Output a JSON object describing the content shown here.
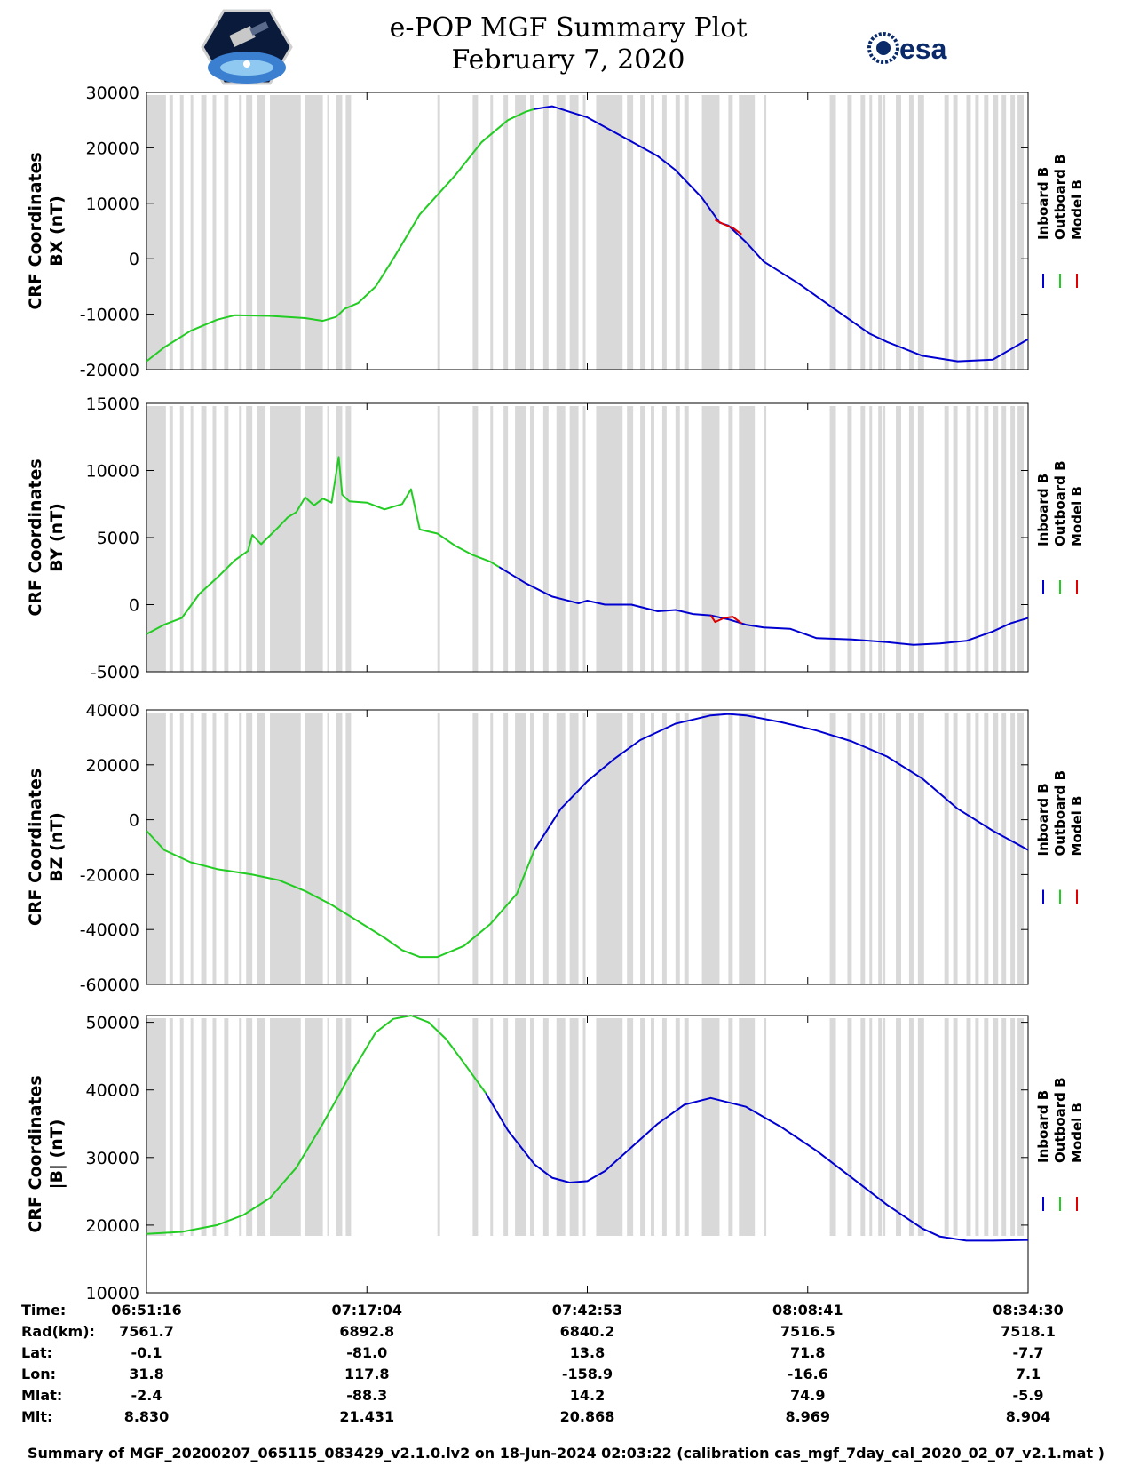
{
  "header": {
    "title_line1": "e-POP MGF Summary Plot",
    "title_line2": "February 7, 2020",
    "logo_left_name": "cassiope-mission-logo",
    "logo_right_text": "esa"
  },
  "colors": {
    "inboard": "#0000d0",
    "outboard": "#22cc22",
    "model": "#e00000",
    "gap_band": "#d9d9d9"
  },
  "chart_data": [
    {
      "type": "line",
      "ylabel_line1": "CRF Coordinates",
      "ylabel_line2": "BX (nT)",
      "ylim": [
        -20000,
        30000
      ],
      "yticks": [
        -20000,
        -10000,
        0,
        10000,
        20000,
        30000
      ],
      "ytick_labels": [
        "-20000",
        "-10000",
        "0",
        "10000",
        "20000",
        "30000"
      ],
      "legend": [
        "Inboard B",
        "Outboard B",
        "Model B"
      ],
      "series": [
        {
          "name": "Outboard B",
          "x": [
            0,
            0.02,
            0.05,
            0.08,
            0.1,
            0.14,
            0.18,
            0.2,
            0.215,
            0.225,
            0.24,
            0.26,
            0.28,
            0.31,
            0.35,
            0.38,
            0.41,
            0.43,
            0.44
          ],
          "values": [
            -18500,
            -16000,
            -13000,
            -11000,
            -10200,
            -10300,
            -10700,
            -11200,
            -10500,
            -9000,
            -8000,
            -5000,
            0,
            8000,
            15000,
            21000,
            25000,
            26500,
            27000
          ]
        },
        {
          "name": "Inboard B",
          "x": [
            0.44,
            0.46,
            0.5,
            0.54,
            0.58,
            0.6,
            0.63,
            0.65,
            0.66,
            0.68,
            0.7,
            0.74,
            0.78,
            0.82,
            0.84,
            0.88,
            0.92,
            0.96,
            1.0
          ],
          "values": [
            27000,
            27500,
            25500,
            22000,
            18500,
            16000,
            11000,
            6500,
            6000,
            3000,
            -500,
            -4500,
            -9000,
            -13500,
            -15000,
            -17500,
            -18500,
            -18200,
            -14500
          ]
        },
        {
          "name": "Model B",
          "x": [
            0.645,
            0.655,
            0.665,
            0.675
          ],
          "values": [
            7000,
            6200,
            5600,
            4400
          ]
        }
      ]
    },
    {
      "type": "line",
      "ylabel_line1": "CRF Coordinates",
      "ylabel_line2": "BY (nT)",
      "ylim": [
        -5000,
        15000
      ],
      "yticks": [
        -5000,
        0,
        5000,
        10000,
        15000
      ],
      "ytick_labels": [
        "-5000",
        "0",
        "5000",
        "10000",
        "15000"
      ],
      "legend": [
        "Inboard B",
        "Outboard B",
        "Model B"
      ],
      "series": [
        {
          "name": "Outboard B",
          "x": [
            0,
            0.02,
            0.04,
            0.06,
            0.08,
            0.1,
            0.115,
            0.12,
            0.13,
            0.15,
            0.16,
            0.17,
            0.18,
            0.19,
            0.2,
            0.21,
            0.218,
            0.222,
            0.23,
            0.25,
            0.27,
            0.29,
            0.3,
            0.31,
            0.33,
            0.35,
            0.37,
            0.39,
            0.4
          ],
          "values": [
            -2200,
            -1500,
            -1000,
            800,
            2000,
            3300,
            4000,
            5200,
            4500,
            5800,
            6500,
            6900,
            8000,
            7400,
            7900,
            7600,
            11000,
            8200,
            7700,
            7600,
            7100,
            7500,
            8600,
            5600,
            5300,
            4400,
            3700,
            3200,
            2800
          ]
        },
        {
          "name": "Inboard B",
          "x": [
            0.4,
            0.43,
            0.46,
            0.49,
            0.5,
            0.52,
            0.55,
            0.58,
            0.6,
            0.62,
            0.64,
            0.66,
            0.68,
            0.7,
            0.73,
            0.76,
            0.8,
            0.84,
            0.87,
            0.9,
            0.93,
            0.96,
            0.98,
            1.0
          ],
          "values": [
            2800,
            1600,
            600,
            100,
            300,
            0,
            0,
            -500,
            -400,
            -700,
            -800,
            -1100,
            -1500,
            -1700,
            -1800,
            -2500,
            -2600,
            -2800,
            -3000,
            -2900,
            -2700,
            -2000,
            -1400,
            -1000
          ]
        },
        {
          "name": "Model B",
          "x": [
            0.64,
            0.645,
            0.655,
            0.665,
            0.675
          ],
          "values": [
            -800,
            -1300,
            -1000,
            -900,
            -1400
          ]
        }
      ]
    },
    {
      "type": "line",
      "ylabel_line1": "CRF Coordinates",
      "ylabel_line2": "BZ (nT)",
      "ylim": [
        -60000,
        40000
      ],
      "yticks": [
        -60000,
        -40000,
        -20000,
        0,
        20000,
        40000
      ],
      "ytick_labels": [
        "-60000",
        "-40000",
        "-20000",
        "0",
        "20000",
        "40000"
      ],
      "legend": [
        "Inboard B",
        "Outboard B",
        "Model B"
      ],
      "series": [
        {
          "name": "Outboard B",
          "x": [
            0,
            0.02,
            0.05,
            0.08,
            0.12,
            0.15,
            0.18,
            0.21,
            0.24,
            0.27,
            0.29,
            0.31,
            0.33,
            0.36,
            0.39,
            0.42,
            0.44
          ],
          "values": [
            -4000,
            -11000,
            -15500,
            -18000,
            -20000,
            -22000,
            -26000,
            -31000,
            -37000,
            -43000,
            -47500,
            -50000,
            -50000,
            -46000,
            -38000,
            -27000,
            -11000
          ]
        },
        {
          "name": "Inboard B",
          "x": [
            0.44,
            0.47,
            0.5,
            0.53,
            0.56,
            0.6,
            0.64,
            0.66,
            0.68,
            0.72,
            0.76,
            0.8,
            0.84,
            0.88,
            0.92,
            0.96,
            1.0
          ],
          "values": [
            -11000,
            4000,
            14000,
            22000,
            29000,
            35000,
            38000,
            38500,
            38000,
            35500,
            32500,
            28500,
            23000,
            15000,
            4000,
            -4000,
            -11000
          ]
        }
      ]
    },
    {
      "type": "line",
      "ylabel_line1": "CRF Coordinates",
      "ylabel_line2": "|B| (nT)",
      "ylim": [
        10000,
        51000
      ],
      "yticks": [
        10000,
        20000,
        30000,
        40000,
        50000
      ],
      "ytick_labels": [
        "10000",
        "20000",
        "30000",
        "40000",
        "50000"
      ],
      "legend": [
        "Inboard B",
        "Outboard B",
        "Model B"
      ],
      "series": [
        {
          "name": "Outboard B",
          "x": [
            0,
            0.04,
            0.08,
            0.11,
            0.14,
            0.17,
            0.2,
            0.23,
            0.26,
            0.28,
            0.3,
            0.32,
            0.34,
            0.36,
            0.385
          ],
          "values": [
            18700,
            19000,
            20000,
            21500,
            24000,
            28500,
            35000,
            42000,
            48500,
            50500,
            51000,
            50000,
            47500,
            44000,
            39500
          ]
        },
        {
          "name": "Inboard B",
          "x": [
            0.385,
            0.41,
            0.44,
            0.46,
            0.48,
            0.5,
            0.52,
            0.55,
            0.58,
            0.61,
            0.64,
            0.68,
            0.72,
            0.76,
            0.8,
            0.84,
            0.88,
            0.9,
            0.93,
            0.96,
            1.0
          ],
          "values": [
            39500,
            34000,
            29000,
            27000,
            26300,
            26500,
            28000,
            31500,
            35000,
            37800,
            38800,
            37500,
            34500,
            31000,
            27000,
            23000,
            19500,
            18300,
            17700,
            17700,
            17800
          ]
        }
      ]
    }
  ],
  "gap_bands": [
    [
      0.0,
      0.022
    ],
    [
      0.026,
      0.03
    ],
    [
      0.038,
      0.042
    ],
    [
      0.05,
      0.053
    ],
    [
      0.062,
      0.068
    ],
    [
      0.075,
      0.079
    ],
    [
      0.088,
      0.093
    ],
    [
      0.105,
      0.108
    ],
    [
      0.113,
      0.12
    ],
    [
      0.125,
      0.135
    ],
    [
      0.14,
      0.175
    ],
    [
      0.18,
      0.2
    ],
    [
      0.205,
      0.207
    ],
    [
      0.215,
      0.222
    ],
    [
      0.226,
      0.232
    ],
    [
      0.33,
      0.333
    ],
    [
      0.37,
      0.376
    ],
    [
      0.39,
      0.393
    ],
    [
      0.405,
      0.41
    ],
    [
      0.418,
      0.43
    ],
    [
      0.435,
      0.44
    ],
    [
      0.45,
      0.456
    ],
    [
      0.465,
      0.475
    ],
    [
      0.48,
      0.49
    ],
    [
      0.495,
      0.498
    ],
    [
      0.51,
      0.54
    ],
    [
      0.545,
      0.552
    ],
    [
      0.56,
      0.566
    ],
    [
      0.572,
      0.576
    ],
    [
      0.585,
      0.59
    ],
    [
      0.6,
      0.605
    ],
    [
      0.61,
      0.615
    ],
    [
      0.63,
      0.65
    ],
    [
      0.66,
      0.665
    ],
    [
      0.672,
      0.69
    ],
    [
      0.7,
      0.703
    ],
    [
      0.775,
      0.782
    ],
    [
      0.795,
      0.8
    ],
    [
      0.81,
      0.815
    ],
    [
      0.83,
      0.834
    ],
    [
      0.82,
      0.823
    ],
    [
      0.835,
      0.838
    ],
    [
      0.85,
      0.856
    ],
    [
      0.865,
      0.87
    ],
    [
      0.875,
      0.882
    ],
    [
      0.905,
      0.91
    ],
    [
      0.915,
      0.92
    ],
    [
      0.93,
      0.935
    ],
    [
      0.94,
      0.944
    ],
    [
      0.95,
      0.955
    ],
    [
      0.96,
      0.966
    ],
    [
      0.97,
      0.975
    ],
    [
      0.98,
      0.985
    ],
    [
      0.988,
      0.995
    ]
  ],
  "time_axis": {
    "ticks": [
      0,
      0.25,
      0.5,
      0.75,
      1.0
    ]
  },
  "info_table": {
    "labels": [
      "Time:",
      "Rad(km):",
      "Lat:",
      "Lon:",
      "Mlat:",
      "Mlt:"
    ],
    "columns": [
      [
        "06:51:16",
        "7561.7",
        "-0.1",
        "31.8",
        "-2.4",
        "8.830"
      ],
      [
        "07:17:04",
        "6892.8",
        "-81.0",
        "117.8",
        "-88.3",
        "21.431"
      ],
      [
        "07:42:53",
        "6840.2",
        "13.8",
        "-158.9",
        "14.2",
        "20.868"
      ],
      [
        "08:08:41",
        "7516.5",
        "71.8",
        "-16.6",
        "74.9",
        "8.969"
      ],
      [
        "08:34:30",
        "7518.1",
        "-7.7",
        "7.1",
        "-5.9",
        "8.904"
      ]
    ]
  },
  "footer_text": "Summary of MGF_20200207_065115_083429_v2.1.0.lv2 on 18-Jun-2024 02:03:22 (calibration cas_mgf_7day_cal_2020_02_07_v2.1.mat )"
}
